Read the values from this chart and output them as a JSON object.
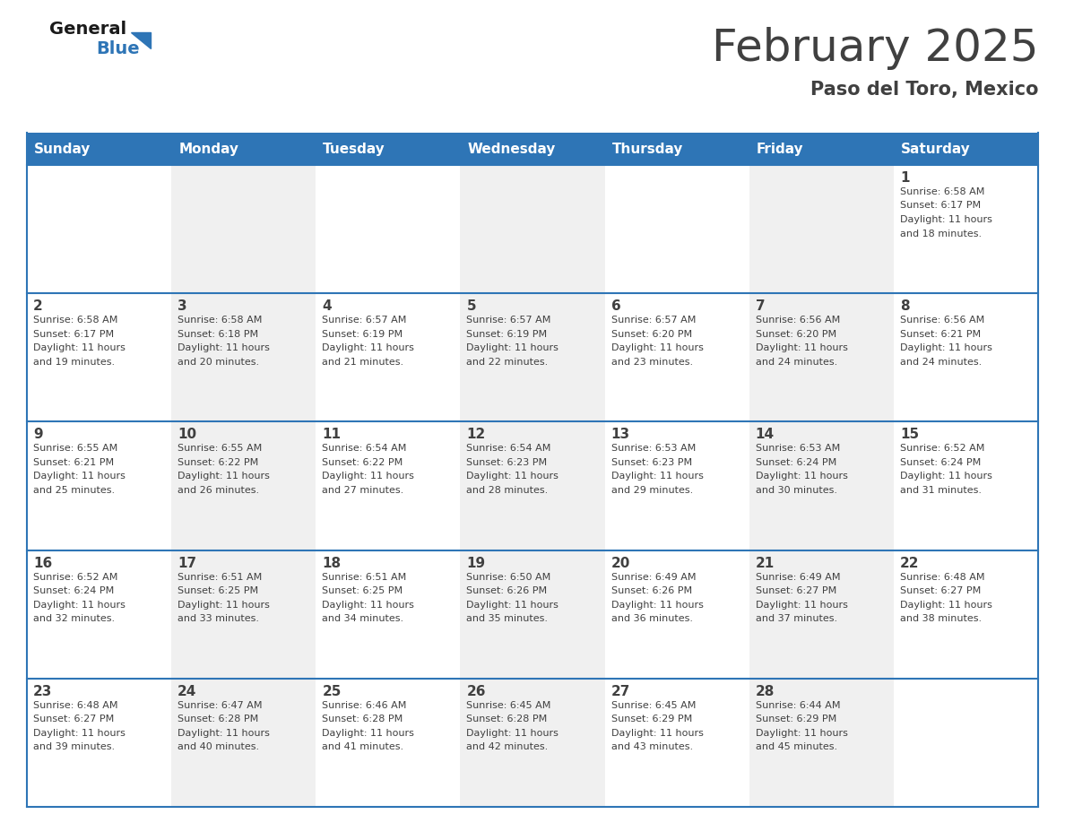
{
  "title": "February 2025",
  "subtitle": "Paso del Toro, Mexico",
  "header_color": "#2E75B6",
  "header_text_color": "#FFFFFF",
  "cell_bg_color": "#F0F0F0",
  "border_color": "#2E75B6",
  "text_color": "#404040",
  "days_of_week": [
    "Sunday",
    "Monday",
    "Tuesday",
    "Wednesday",
    "Thursday",
    "Friday",
    "Saturday"
  ],
  "calendar_data": [
    [
      null,
      null,
      null,
      null,
      null,
      null,
      {
        "day": 1,
        "sunrise": "6:58 AM",
        "sunset": "6:17 PM",
        "daylight_hours": 11,
        "daylight_minutes": 18
      }
    ],
    [
      {
        "day": 2,
        "sunrise": "6:58 AM",
        "sunset": "6:17 PM",
        "daylight_hours": 11,
        "daylight_minutes": 19
      },
      {
        "day": 3,
        "sunrise": "6:58 AM",
        "sunset": "6:18 PM",
        "daylight_hours": 11,
        "daylight_minutes": 20
      },
      {
        "day": 4,
        "sunrise": "6:57 AM",
        "sunset": "6:19 PM",
        "daylight_hours": 11,
        "daylight_minutes": 21
      },
      {
        "day": 5,
        "sunrise": "6:57 AM",
        "sunset": "6:19 PM",
        "daylight_hours": 11,
        "daylight_minutes": 22
      },
      {
        "day": 6,
        "sunrise": "6:57 AM",
        "sunset": "6:20 PM",
        "daylight_hours": 11,
        "daylight_minutes": 23
      },
      {
        "day": 7,
        "sunrise": "6:56 AM",
        "sunset": "6:20 PM",
        "daylight_hours": 11,
        "daylight_minutes": 24
      },
      {
        "day": 8,
        "sunrise": "6:56 AM",
        "sunset": "6:21 PM",
        "daylight_hours": 11,
        "daylight_minutes": 24
      }
    ],
    [
      {
        "day": 9,
        "sunrise": "6:55 AM",
        "sunset": "6:21 PM",
        "daylight_hours": 11,
        "daylight_minutes": 25
      },
      {
        "day": 10,
        "sunrise": "6:55 AM",
        "sunset": "6:22 PM",
        "daylight_hours": 11,
        "daylight_minutes": 26
      },
      {
        "day": 11,
        "sunrise": "6:54 AM",
        "sunset": "6:22 PM",
        "daylight_hours": 11,
        "daylight_minutes": 27
      },
      {
        "day": 12,
        "sunrise": "6:54 AM",
        "sunset": "6:23 PM",
        "daylight_hours": 11,
        "daylight_minutes": 28
      },
      {
        "day": 13,
        "sunrise": "6:53 AM",
        "sunset": "6:23 PM",
        "daylight_hours": 11,
        "daylight_minutes": 29
      },
      {
        "day": 14,
        "sunrise": "6:53 AM",
        "sunset": "6:24 PM",
        "daylight_hours": 11,
        "daylight_minutes": 30
      },
      {
        "day": 15,
        "sunrise": "6:52 AM",
        "sunset": "6:24 PM",
        "daylight_hours": 11,
        "daylight_minutes": 31
      }
    ],
    [
      {
        "day": 16,
        "sunrise": "6:52 AM",
        "sunset": "6:24 PM",
        "daylight_hours": 11,
        "daylight_minutes": 32
      },
      {
        "day": 17,
        "sunrise": "6:51 AM",
        "sunset": "6:25 PM",
        "daylight_hours": 11,
        "daylight_minutes": 33
      },
      {
        "day": 18,
        "sunrise": "6:51 AM",
        "sunset": "6:25 PM",
        "daylight_hours": 11,
        "daylight_minutes": 34
      },
      {
        "day": 19,
        "sunrise": "6:50 AM",
        "sunset": "6:26 PM",
        "daylight_hours": 11,
        "daylight_minutes": 35
      },
      {
        "day": 20,
        "sunrise": "6:49 AM",
        "sunset": "6:26 PM",
        "daylight_hours": 11,
        "daylight_minutes": 36
      },
      {
        "day": 21,
        "sunrise": "6:49 AM",
        "sunset": "6:27 PM",
        "daylight_hours": 11,
        "daylight_minutes": 37
      },
      {
        "day": 22,
        "sunrise": "6:48 AM",
        "sunset": "6:27 PM",
        "daylight_hours": 11,
        "daylight_minutes": 38
      }
    ],
    [
      {
        "day": 23,
        "sunrise": "6:48 AM",
        "sunset": "6:27 PM",
        "daylight_hours": 11,
        "daylight_minutes": 39
      },
      {
        "day": 24,
        "sunrise": "6:47 AM",
        "sunset": "6:28 PM",
        "daylight_hours": 11,
        "daylight_minutes": 40
      },
      {
        "day": 25,
        "sunrise": "6:46 AM",
        "sunset": "6:28 PM",
        "daylight_hours": 11,
        "daylight_minutes": 41
      },
      {
        "day": 26,
        "sunrise": "6:45 AM",
        "sunset": "6:28 PM",
        "daylight_hours": 11,
        "daylight_minutes": 42
      },
      {
        "day": 27,
        "sunrise": "6:45 AM",
        "sunset": "6:29 PM",
        "daylight_hours": 11,
        "daylight_minutes": 43
      },
      {
        "day": 28,
        "sunrise": "6:44 AM",
        "sunset": "6:29 PM",
        "daylight_hours": 11,
        "daylight_minutes": 45
      },
      null
    ]
  ],
  "logo_general_color": "#1a1a1a",
  "logo_blue_color": "#2E75B6",
  "title_fontsize": 36,
  "subtitle_fontsize": 15,
  "header_fontsize": 11,
  "day_num_fontsize": 11,
  "cell_text_fontsize": 8
}
